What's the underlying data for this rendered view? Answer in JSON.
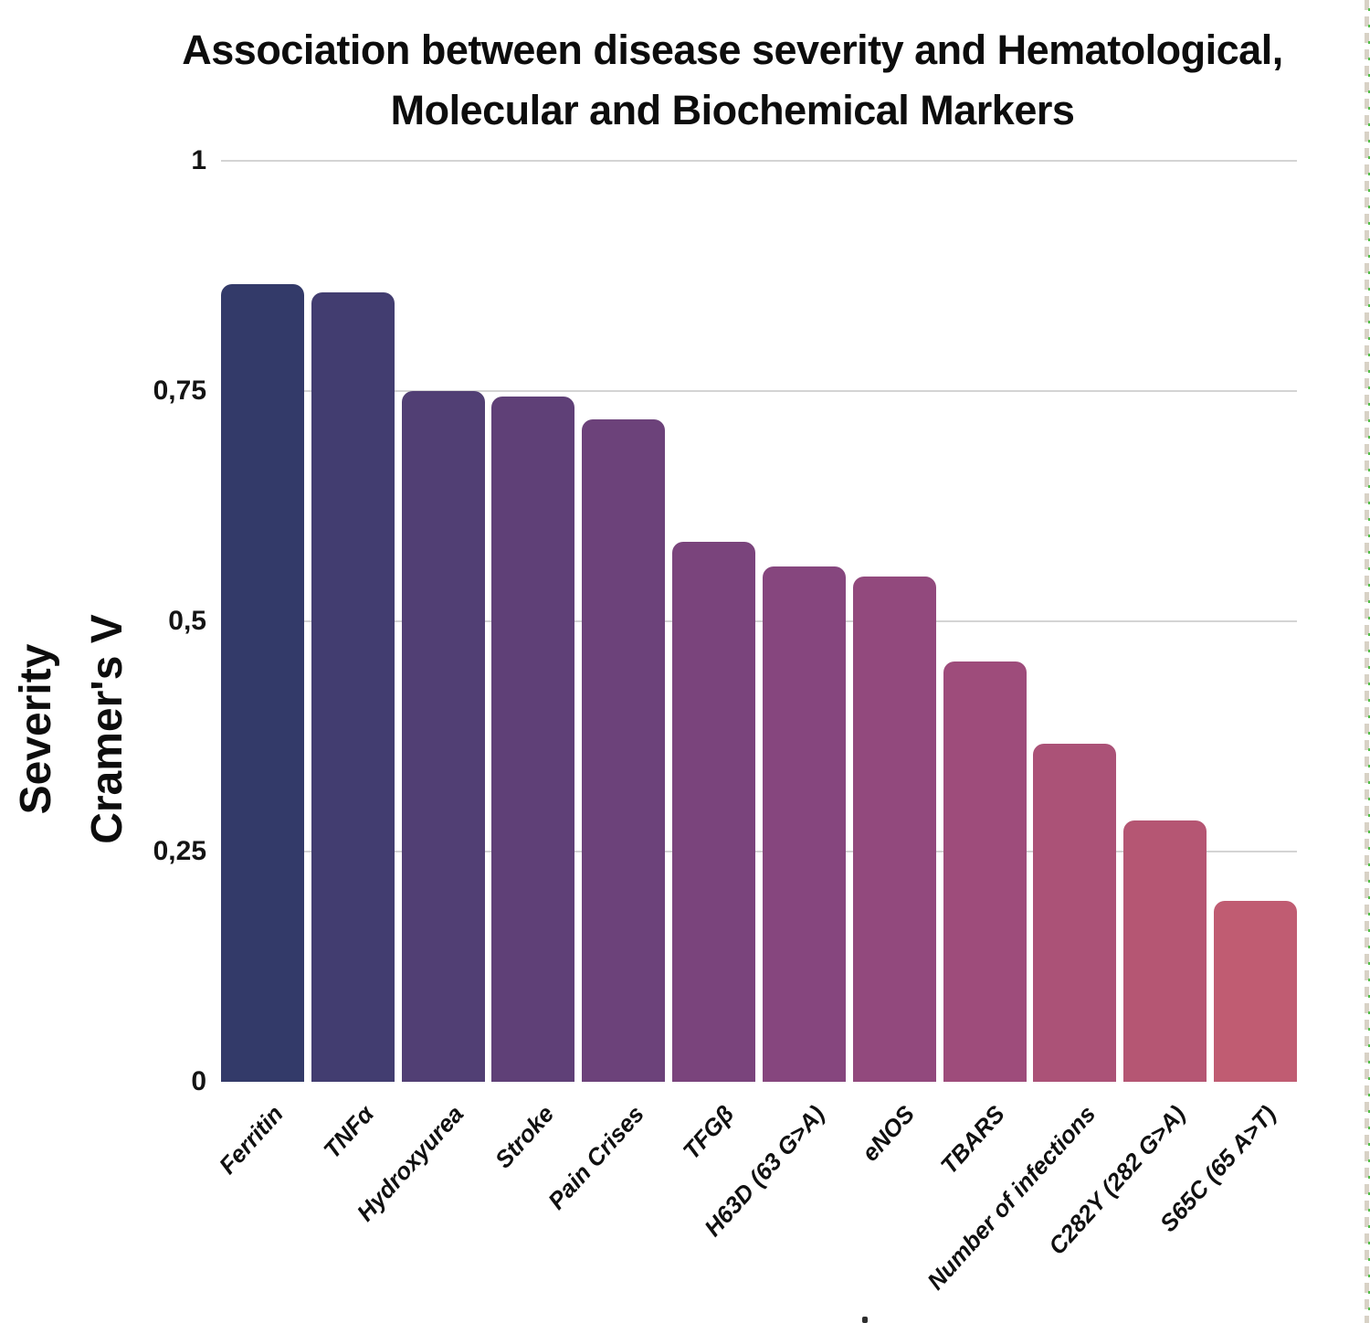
{
  "title": {
    "line1": "Association between disease severity and Hematological,",
    "line2": "Molecular and Biochemical Markers"
  },
  "y_axis_title": {
    "line1": "Severity",
    "line2": "Cramer's V"
  },
  "chart_data": {
    "type": "bar",
    "title": "Association between disease severity and Hematological, Molecular and Biochemical Markers",
    "xlabel": "",
    "ylabel": "Severity Cramer's V",
    "ylim": [
      0,
      1
    ],
    "grid": true,
    "legend_position": "none",
    "decimal_separator": ",",
    "categories": [
      "Ferritin",
      "TNFα",
      "Hydroxyurea",
      "Stroke",
      "Pain Crises",
      "TFGβ",
      "H63D (63 G>A)",
      "eNOS",
      "TBARS",
      "Number of infections",
      "C282Y (282 G>A)",
      "S65C (65 A>T)"
    ],
    "values": [
      0.866,
      0.857,
      0.75,
      0.744,
      0.719,
      0.586,
      0.56,
      0.549,
      0.456,
      0.367,
      0.284,
      0.196
    ],
    "yticks": [
      {
        "value": 1,
        "label": "1"
      },
      {
        "value": 0.75,
        "label": "0,75"
      },
      {
        "value": 0.5,
        "label": "0,5"
      },
      {
        "value": 0.25,
        "label": "0,25"
      },
      {
        "value": 0,
        "label": "0"
      }
    ],
    "bar_colors": [
      "#333a69",
      "#423d70",
      "#513f74",
      "#5f4077",
      "#6c427a",
      "#7a447c",
      "#86467e",
      "#92497d",
      "#9e4c7b",
      "#ab5277",
      "#b55673",
      "#c05c72"
    ],
    "gridline_color": "#d4d4d4",
    "text_color": "#0d0d0d",
    "background_color": "#ffffff"
  }
}
